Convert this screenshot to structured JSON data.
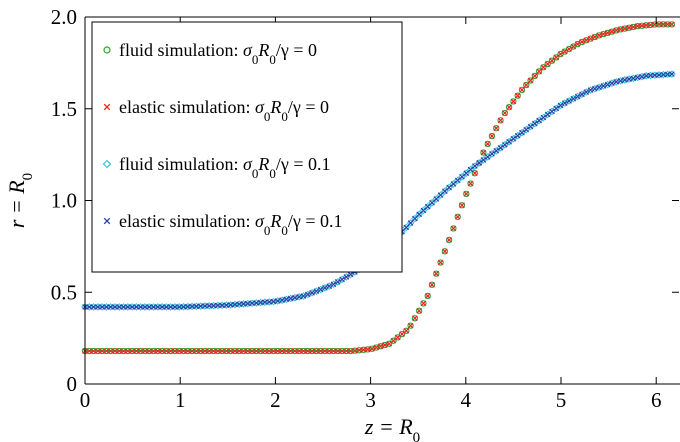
{
  "chart_data": {
    "type": "scatter",
    "xlabel": "z = R0",
    "ylabel": "r = R0",
    "xlim": [
      0,
      6.25
    ],
    "ylim": [
      0,
      2.0
    ],
    "x_ticks": [
      "0",
      "1",
      "2",
      "3",
      "4",
      "5",
      "6"
    ],
    "y_ticks": [
      "0",
      "0.5",
      "1.0",
      "1.5",
      "2.0"
    ],
    "grid": false,
    "legend_position": "top-left",
    "series": [
      {
        "name": "fluid simulation: σ0R0/γ = 0",
        "marker": "circle",
        "color": "#2ca02c",
        "x": [
          0,
          0.5,
          1.0,
          1.5,
          2.0,
          2.5,
          2.8,
          3.0,
          3.2,
          3.4,
          3.6,
          3.8,
          4.0,
          4.2,
          4.4,
          4.6,
          4.8,
          5.0,
          5.2,
          5.4,
          5.6,
          5.8,
          6.0,
          6.2
        ],
        "y": [
          0.18,
          0.18,
          0.18,
          0.18,
          0.18,
          0.18,
          0.18,
          0.19,
          0.22,
          0.3,
          0.48,
          0.75,
          1.03,
          1.28,
          1.47,
          1.61,
          1.72,
          1.8,
          1.86,
          1.9,
          1.93,
          1.95,
          1.96,
          1.96
        ]
      },
      {
        "name": "elastic simulation: σ0R0/γ = 0",
        "marker": "x",
        "color": "#e8231c",
        "x": [
          0,
          0.5,
          1.0,
          1.5,
          2.0,
          2.5,
          2.8,
          3.0,
          3.2,
          3.4,
          3.6,
          3.8,
          4.0,
          4.2,
          4.4,
          4.6,
          4.8,
          5.0,
          5.2,
          5.4,
          5.6,
          5.8,
          6.0,
          6.2
        ],
        "y": [
          0.18,
          0.18,
          0.18,
          0.18,
          0.18,
          0.18,
          0.18,
          0.19,
          0.22,
          0.3,
          0.48,
          0.75,
          1.03,
          1.28,
          1.47,
          1.61,
          1.72,
          1.8,
          1.86,
          1.9,
          1.93,
          1.95,
          1.96,
          1.96
        ]
      },
      {
        "name": "fluid simulation: σ0R0/γ = 0.1",
        "marker": "diamond",
        "color": "#33c1d6",
        "x": [
          0,
          0.5,
          1.0,
          1.5,
          2.0,
          2.3,
          2.6,
          2.9,
          3.2,
          3.5,
          3.8,
          4.1,
          4.4,
          4.7,
          5.0,
          5.3,
          5.6,
          5.9,
          6.2
        ],
        "y": [
          0.42,
          0.42,
          0.42,
          0.43,
          0.45,
          0.48,
          0.54,
          0.63,
          0.76,
          0.92,
          1.06,
          1.19,
          1.3,
          1.41,
          1.52,
          1.6,
          1.65,
          1.68,
          1.69
        ]
      },
      {
        "name": "elastic simulation: σ0R0/γ = 0.1",
        "marker": "x",
        "color": "#2a3fa8",
        "x": [
          0,
          0.5,
          1.0,
          1.5,
          2.0,
          2.3,
          2.6,
          2.9,
          3.2,
          3.5,
          3.8,
          4.1,
          4.4,
          4.7,
          5.0,
          5.3,
          5.6,
          5.9,
          6.2
        ],
        "y": [
          0.42,
          0.42,
          0.42,
          0.43,
          0.45,
          0.48,
          0.54,
          0.63,
          0.76,
          0.92,
          1.06,
          1.19,
          1.3,
          1.41,
          1.52,
          1.6,
          1.65,
          1.68,
          1.69
        ]
      }
    ]
  }
}
